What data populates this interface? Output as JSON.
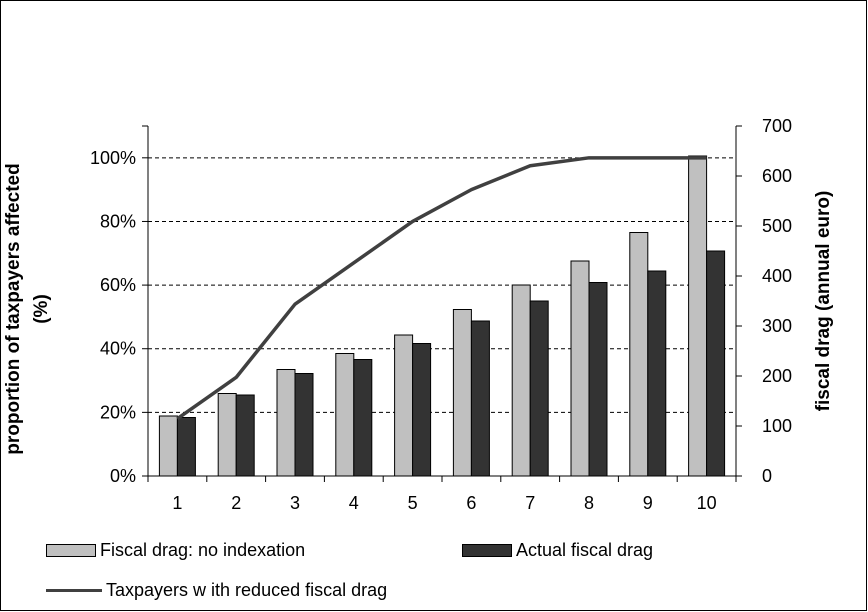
{
  "chart_data": {
    "type": "bar",
    "categories": [
      "1",
      "2",
      "3",
      "4",
      "5",
      "6",
      "7",
      "8",
      "9",
      "10"
    ],
    "series": [
      {
        "name": "Fiscal drag: no indexation",
        "kind": "bar",
        "axis": "right",
        "color": "#c0c0c0",
        "values": [
          120,
          165,
          213,
          245,
          282,
          333,
          382,
          430,
          487,
          640
        ]
      },
      {
        "name": "Actual fiscal drag",
        "kind": "bar",
        "axis": "right",
        "color": "#333333",
        "values": [
          117,
          162,
          205,
          233,
          265,
          310,
          350,
          387,
          410,
          450
        ]
      },
      {
        "name": "Taxpayers w ith reduced fiscal drag",
        "kind": "line",
        "axis": "left",
        "color": "#404040",
        "values": [
          0.18,
          0.31,
          0.54,
          0.67,
          0.8,
          0.9,
          0.975,
          1.0,
          1.0,
          1.0
        ]
      }
    ],
    "y_left": {
      "label_line1": "proportion of taxpayers affected",
      "label_line2": "(%)",
      "ylim": [
        0,
        1.1
      ],
      "ticks": [
        0,
        0.2,
        0.4,
        0.6,
        0.8,
        1.0
      ],
      "tick_labels": [
        "0%",
        "20%",
        "40%",
        "60%",
        "80%",
        "100%"
      ]
    },
    "y_right": {
      "label": "fiscal drag (annual euro)",
      "ylim": [
        0,
        700
      ],
      "ticks": [
        0,
        100,
        200,
        300,
        400,
        500,
        600,
        700
      ],
      "tick_labels": [
        "0",
        "100",
        "200",
        "300",
        "400",
        "500",
        "600",
        "700"
      ]
    },
    "grid": "dashed horizontal",
    "legend_position": "bottom"
  }
}
